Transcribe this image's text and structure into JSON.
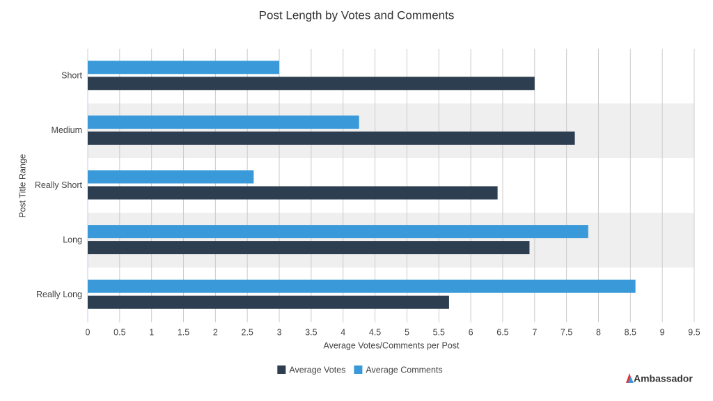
{
  "chart_data": {
    "type": "bar",
    "orientation": "horizontal",
    "title": "Post Length by Votes and Comments",
    "x_label": "Average Votes/Comments per Post",
    "y_label": "Post Title Range",
    "categories": [
      "Short",
      "Medium",
      "Really Short",
      "Long",
      "Really Long"
    ],
    "series": [
      {
        "name": "Average Votes",
        "color": "#2d3e50",
        "values": [
          7.0,
          7.63,
          6.42,
          6.92,
          5.66
        ]
      },
      {
        "name": "Average Comments",
        "color": "#3a9ad9",
        "values": [
          3.0,
          4.25,
          2.6,
          7.84,
          8.58
        ]
      }
    ],
    "xlim": [
      0,
      9.5
    ],
    "xticks": [
      0,
      0.5,
      1,
      1.5,
      2,
      2.5,
      3,
      3.5,
      4,
      4.5,
      5,
      5.5,
      6,
      6.5,
      7,
      7.5,
      8,
      8.5,
      9,
      9.5
    ],
    "grid": true,
    "legend": "bottom",
    "brand": "Ambassador"
  }
}
